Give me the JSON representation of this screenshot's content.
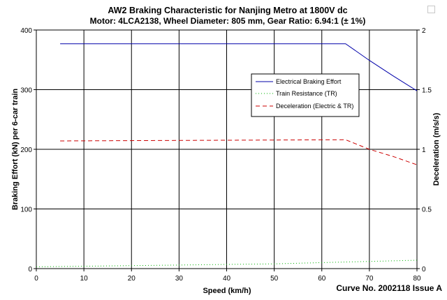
{
  "chart_data": {
    "type": "line",
    "title": "AW2 Braking Characteristic for Nanjing Metro at 1800V dc",
    "subtitle": "Motor: 4LCA2138, Wheel Diameter: 805 mm, Gear Ratio: 6.94:1 (± 1%)",
    "xlabel": "Speed (km/h)",
    "ylabel": "Braking Effort (kN) per 6-car train",
    "y2label": "Deceleration (m/s/s)",
    "footer": "Curve No. 2002118 Issue A",
    "xlim": [
      0,
      80
    ],
    "ylim": [
      0,
      400
    ],
    "y2lim": [
      0,
      2
    ],
    "x_ticks": [
      "0",
      "10",
      "20",
      "30",
      "40",
      "50",
      "60",
      "70",
      "80"
    ],
    "y_ticks": [
      "0",
      "100",
      "200",
      "300",
      "400"
    ],
    "y2_ticks": [
      "0",
      "0.5",
      "1",
      "1.5",
      "2"
    ],
    "grid": true,
    "legend_position": "top-right",
    "series": [
      {
        "name": "Electrical Braking Effort",
        "axis": "left",
        "color": "#0000aa",
        "style": "solid",
        "x": [
          5,
          65,
          70,
          75,
          80
        ],
        "y": [
          377,
          377,
          349,
          323,
          298
        ]
      },
      {
        "name": "Train Resistance (TR)",
        "axis": "left",
        "color": "#00b000",
        "style": "dotted",
        "x": [
          0,
          10,
          20,
          30,
          40,
          50,
          60,
          70,
          80
        ],
        "y": [
          3,
          4,
          5,
          6,
          7,
          8,
          10,
          12,
          14
        ]
      },
      {
        "name": "Deceleration (Electric & TR)",
        "axis": "right",
        "color": "#cc0000",
        "style": "dashed",
        "x": [
          5,
          65,
          70,
          75,
          80
        ],
        "y": [
          1.07,
          1.08,
          1.0,
          0.94,
          0.87
        ]
      }
    ]
  }
}
